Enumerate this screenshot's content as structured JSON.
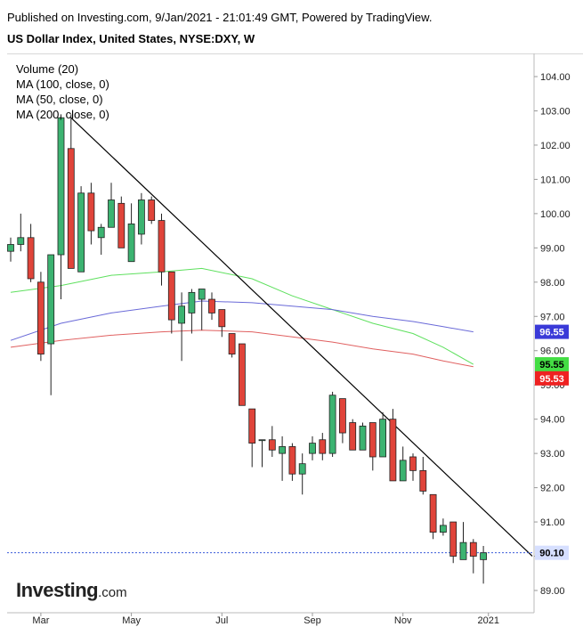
{
  "header": {
    "published": "Published on Investing.com, 9/Jan/2021 - 21:01:49 GMT, Powered by TradingView.",
    "title": "US Dollar Index, United States, NYSE:DXY, W"
  },
  "legend": [
    "Volume (20)",
    "MA (100, close, 0)",
    "MA (50, close, 0)",
    "MA (200, close, 0)"
  ],
  "logo": {
    "brand": "Investing",
    "tld": ".com"
  },
  "colors": {
    "up": "#26a69a",
    "up_fill": "#3cb371",
    "down": "#e0443a",
    "ma50": "#5ee05e",
    "ma100": "#6a6ad8",
    "ma200": "#e06060",
    "price_line": "#3a5bd9",
    "trendline": "#000000"
  },
  "chart_data": {
    "type": "candlestick",
    "timeframe": "weekly",
    "x_tick_labels": [
      "Mar",
      "May",
      "Jul",
      "Sep",
      "Nov",
      "2021"
    ],
    "y_tick_labels": [
      "89.00",
      "90.00",
      "91.00",
      "92.00",
      "93.00",
      "94.00",
      "95.00",
      "96.00",
      "97.00",
      "98.00",
      "99.00",
      "100.00",
      "101.00",
      "102.00",
      "103.00",
      "104.00"
    ],
    "ylim": [
      88.4,
      104.9
    ],
    "candles": [
      {
        "o": 98.9,
        "h": 99.3,
        "l": 98.6,
        "c": 99.1
      },
      {
        "o": 99.1,
        "h": 100.0,
        "l": 98.9,
        "c": 99.3
      },
      {
        "o": 99.3,
        "h": 99.7,
        "l": 98.0,
        "c": 98.1
      },
      {
        "o": 98.0,
        "h": 98.3,
        "l": 95.7,
        "c": 95.9
      },
      {
        "o": 96.2,
        "h": 98.8,
        "l": 94.7,
        "c": 98.8
      },
      {
        "o": 98.8,
        "h": 102.9,
        "l": 97.5,
        "c": 102.8
      },
      {
        "o": 101.9,
        "h": 102.9,
        "l": 98.4,
        "c": 98.4
      },
      {
        "o": 98.3,
        "h": 100.8,
        "l": 98.3,
        "c": 100.6
      },
      {
        "o": 100.6,
        "h": 100.9,
        "l": 99.1,
        "c": 99.5
      },
      {
        "o": 99.3,
        "h": 99.7,
        "l": 98.8,
        "c": 99.6
      },
      {
        "o": 99.6,
        "h": 100.9,
        "l": 99.6,
        "c": 100.4
      },
      {
        "o": 100.3,
        "h": 100.5,
        "l": 99.0,
        "c": 99.0
      },
      {
        "o": 98.6,
        "h": 100.3,
        "l": 98.6,
        "c": 99.7
      },
      {
        "o": 99.4,
        "h": 100.6,
        "l": 99.1,
        "c": 100.4
      },
      {
        "o": 100.4,
        "h": 100.5,
        "l": 99.7,
        "c": 99.8
      },
      {
        "o": 99.8,
        "h": 100.0,
        "l": 97.9,
        "c": 98.3
      },
      {
        "o": 98.3,
        "h": 98.3,
        "l": 96.5,
        "c": 96.9
      },
      {
        "o": 96.8,
        "h": 97.7,
        "l": 95.7,
        "c": 97.3
      },
      {
        "o": 97.1,
        "h": 97.8,
        "l": 96.5,
        "c": 97.7
      },
      {
        "o": 97.5,
        "h": 97.8,
        "l": 96.6,
        "c": 97.8
      },
      {
        "o": 97.5,
        "h": 97.7,
        "l": 96.9,
        "c": 97.1
      },
      {
        "o": 97.2,
        "h": 97.2,
        "l": 96.4,
        "c": 96.7
      },
      {
        "o": 96.5,
        "h": 96.5,
        "l": 95.8,
        "c": 95.9
      },
      {
        "o": 96.2,
        "h": 96.2,
        "l": 94.4,
        "c": 94.4
      },
      {
        "o": 94.3,
        "h": 94.3,
        "l": 92.6,
        "c": 93.3
      },
      {
        "o": 93.4,
        "h": 93.4,
        "l": 92.6,
        "c": 93.4
      },
      {
        "o": 93.4,
        "h": 93.8,
        "l": 92.9,
        "c": 93.1
      },
      {
        "o": 93.0,
        "h": 93.5,
        "l": 92.2,
        "c": 93.2
      },
      {
        "o": 93.2,
        "h": 93.3,
        "l": 92.2,
        "c": 92.4
      },
      {
        "o": 92.4,
        "h": 93.0,
        "l": 91.8,
        "c": 92.7
      },
      {
        "o": 93.0,
        "h": 93.5,
        "l": 92.8,
        "c": 93.3
      },
      {
        "o": 93.4,
        "h": 93.6,
        "l": 92.8,
        "c": 93.0
      },
      {
        "o": 93.0,
        "h": 94.8,
        "l": 92.9,
        "c": 94.7
      },
      {
        "o": 94.6,
        "h": 94.6,
        "l": 93.3,
        "c": 93.6
      },
      {
        "o": 93.9,
        "h": 94.0,
        "l": 93.1,
        "c": 93.1
      },
      {
        "o": 93.1,
        "h": 93.9,
        "l": 93.1,
        "c": 93.8
      },
      {
        "o": 93.9,
        "h": 93.9,
        "l": 92.5,
        "c": 92.9
      },
      {
        "o": 92.9,
        "h": 94.2,
        "l": 92.9,
        "c": 94.0
      },
      {
        "o": 94.0,
        "h": 94.3,
        "l": 92.2,
        "c": 92.2
      },
      {
        "o": 92.2,
        "h": 93.2,
        "l": 92.2,
        "c": 92.8
      },
      {
        "o": 92.9,
        "h": 93.0,
        "l": 92.2,
        "c": 92.5
      },
      {
        "o": 92.5,
        "h": 92.9,
        "l": 91.8,
        "c": 91.9
      },
      {
        "o": 91.8,
        "h": 91.8,
        "l": 90.5,
        "c": 90.7
      },
      {
        "o": 90.7,
        "h": 91.1,
        "l": 90.6,
        "c": 90.9
      },
      {
        "o": 91.0,
        "h": 91.0,
        "l": 89.8,
        "c": 90.0
      },
      {
        "o": 89.9,
        "h": 91.0,
        "l": 89.9,
        "c": 90.4
      },
      {
        "o": 90.4,
        "h": 90.5,
        "l": 89.5,
        "c": 90.0
      },
      {
        "o": 89.9,
        "h": 90.3,
        "l": 89.2,
        "c": 90.1
      }
    ],
    "moving_averages": [
      {
        "name": "MA (50, close, 0)",
        "color": "#5ee05e",
        "points": [
          [
            0,
            97.7
          ],
          [
            5,
            97.9
          ],
          [
            10,
            98.2
          ],
          [
            15,
            98.3
          ],
          [
            19,
            98.4
          ],
          [
            24,
            98.1
          ],
          [
            28,
            97.6
          ],
          [
            32,
            97.2
          ],
          [
            36,
            96.8
          ],
          [
            40,
            96.5
          ],
          [
            43,
            96.1
          ],
          [
            46,
            95.6
          ]
        ],
        "last_label": "95.55"
      },
      {
        "name": "MA (100, close, 0)",
        "color": "#6a6ad8",
        "points": [
          [
            0,
            96.3
          ],
          [
            5,
            96.8
          ],
          [
            10,
            97.1
          ],
          [
            15,
            97.3
          ],
          [
            19,
            97.45
          ],
          [
            24,
            97.4
          ],
          [
            28,
            97.3
          ],
          [
            32,
            97.2
          ],
          [
            36,
            97.0
          ],
          [
            40,
            96.85
          ],
          [
            43,
            96.7
          ],
          [
            46,
            96.55
          ]
        ],
        "last_label": "96.55"
      },
      {
        "name": "MA (200, close, 0)",
        "color": "#e06060",
        "points": [
          [
            0,
            96.1
          ],
          [
            5,
            96.3
          ],
          [
            10,
            96.45
          ],
          [
            15,
            96.55
          ],
          [
            19,
            96.6
          ],
          [
            24,
            96.55
          ],
          [
            28,
            96.4
          ],
          [
            32,
            96.25
          ],
          [
            36,
            96.05
          ],
          [
            40,
            95.9
          ],
          [
            43,
            95.7
          ],
          [
            46,
            95.53
          ]
        ],
        "last_label": "95.53"
      }
    ],
    "trendline": {
      "from": [
        6,
        102.8
      ],
      "to": [
        49,
        90.8
      ]
    },
    "current_price": {
      "value": 90.1,
      "label": "90.10"
    },
    "price_badges": [
      {
        "label": "96.55",
        "value": 96.55,
        "bg": "#3a3ad8",
        "fg": "#ffffff"
      },
      {
        "label": "95.55",
        "value": 95.55,
        "bg": "#44dd44",
        "fg": "#000000"
      },
      {
        "label": "95.53",
        "value": 95.53,
        "bg": "#ee2222",
        "fg": "#ffffff"
      },
      {
        "label": "90.10",
        "value": 90.1,
        "bg": "#d6dfff",
        "fg": "#000000"
      }
    ]
  }
}
